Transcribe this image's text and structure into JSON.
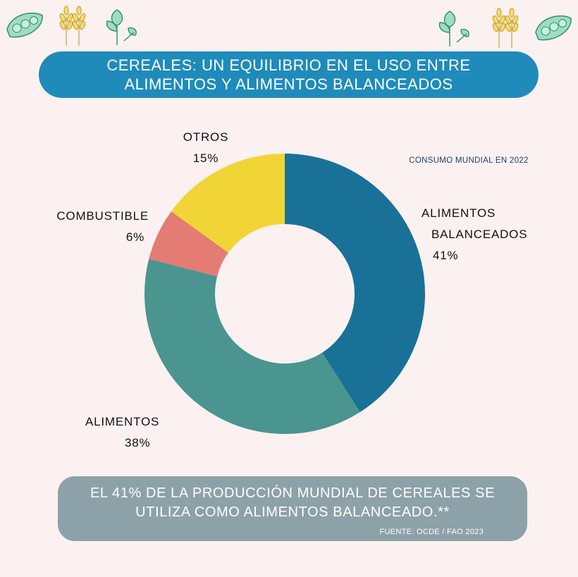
{
  "header": {
    "title_line1": "CEREALES: UN EQUILIBRIO EN EL USO ENTRE",
    "title_line2": "ALIMENTOS Y ALIMENTOS BALANCEADOS"
  },
  "subtitle": "CONSUMO MUNDIAL EN 2022",
  "chart_data": {
    "type": "pie",
    "donut": true,
    "title": "CEREALES: UN EQUILIBRIO EN EL USO ENTRE ALIMENTOS Y ALIMENTOS BALANCEADOS",
    "subtitle": "CONSUMO MUNDIAL EN 2022",
    "categories": [
      "ALIMENTOS BALANCEADOS",
      "ALIMENTOS",
      "COMBUSTIBLE",
      "OTROS"
    ],
    "values": [
      41,
      38,
      6,
      15
    ],
    "value_labels": [
      "41%",
      "38%",
      "6%",
      "15%"
    ],
    "colors": [
      "#1a7197",
      "#4a9590",
      "#e47c74",
      "#f1d536"
    ]
  },
  "labels": {
    "balanceados_line1": "ALIMENTOS",
    "balanceados_line2": "BALANCEADOS",
    "balanceados_pct": "41%",
    "alimentos_name": "ALIMENTOS",
    "alimentos_pct": "38%",
    "combustible_name": "COMBUSTIBLE",
    "combustible_pct": "6%",
    "otros_name": "OTROS",
    "otros_pct": "15%"
  },
  "footer": {
    "line1": "EL 41% DE LA PRODUCCIÓN MUNDIAL DE CEREALES SE",
    "line2": "UTILIZA COMO ALIMENTOS BALANCEADO.**",
    "source": "FUENTE: OCDE / FAO 2023"
  },
  "icons": [
    "peas-icon",
    "wheat-icon",
    "herb-leaf-icon",
    "herb-leaf-icon",
    "wheat-icon",
    "peas-icon"
  ]
}
